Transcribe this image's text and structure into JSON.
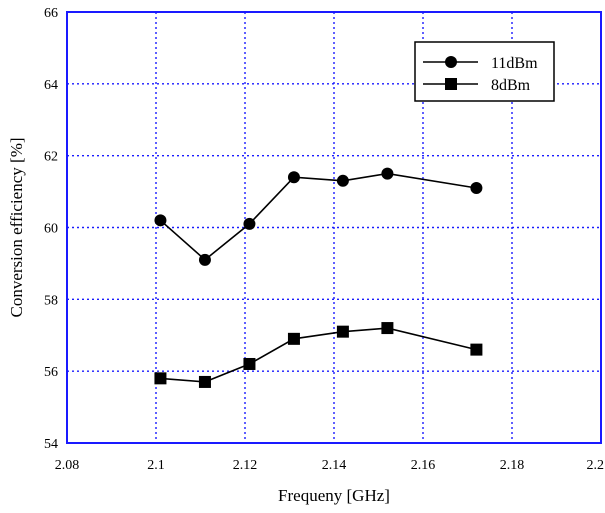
{
  "chart_data": {
    "type": "line",
    "xlabel": "Frequeny [GHz]",
    "ylabel": "Conversion efficiency [%]",
    "xlim": [
      2.08,
      2.2
    ],
    "ylim": [
      54,
      66
    ],
    "xticks": [
      "2.08",
      "2.1",
      "2.12",
      "2.14",
      "2.16",
      "2.18",
      "2.2"
    ],
    "yticks": [
      "54",
      "56",
      "58",
      "60",
      "62",
      "64",
      "66"
    ],
    "grid": true,
    "legend_position": "top-right",
    "x": [
      2.101,
      2.111,
      2.121,
      2.131,
      2.142,
      2.152,
      2.172
    ],
    "series": [
      {
        "name": "11dBm",
        "marker": "circle",
        "values": [
          60.2,
          59.1,
          60.1,
          61.4,
          61.3,
          61.5,
          61.1
        ]
      },
      {
        "name": "8dBm",
        "marker": "square",
        "values": [
          55.8,
          55.7,
          56.2,
          56.9,
          57.1,
          57.2,
          56.6
        ]
      }
    ],
    "colors": {
      "grid": "#1a1aff",
      "frame": "#1a1aff",
      "series": "#000000"
    }
  }
}
